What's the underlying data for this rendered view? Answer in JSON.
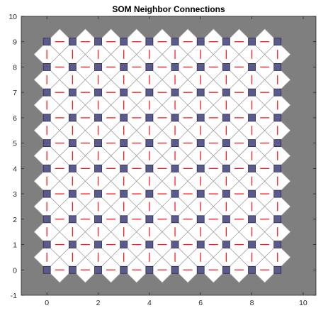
{
  "chart_data": {
    "type": "scatter",
    "title": "SOM Neighbor Connections",
    "xlabel": "",
    "ylabel": "",
    "xlim": [
      -1,
      10.5
    ],
    "ylim": [
      -1,
      10
    ],
    "xticks": [
      0,
      2,
      4,
      6,
      8,
      10
    ],
    "yticks": [
      -1,
      0,
      1,
      2,
      3,
      4,
      5,
      6,
      7,
      8,
      9,
      10
    ],
    "grid": false,
    "legend": "none",
    "grid_size": {
      "cols": 10,
      "rows": 10
    },
    "neurons": {
      "x": [
        0,
        1,
        2,
        3,
        4,
        5,
        6,
        7,
        8,
        9
      ],
      "y": [
        0,
        1,
        2,
        3,
        4,
        5,
        6,
        7,
        8,
        9
      ]
    },
    "colors": {
      "axes_background": "#7f7f7f",
      "figure_background": "#ffffff",
      "neuron_fill": "#5a5a8c",
      "neuron_edge": "#2a2a50",
      "diamond_fill": "#ffffff",
      "diamond_edge": "#b5b5b5",
      "connection_line": "#ff1a1a",
      "diagonal_line": "#9a9a9a"
    }
  }
}
